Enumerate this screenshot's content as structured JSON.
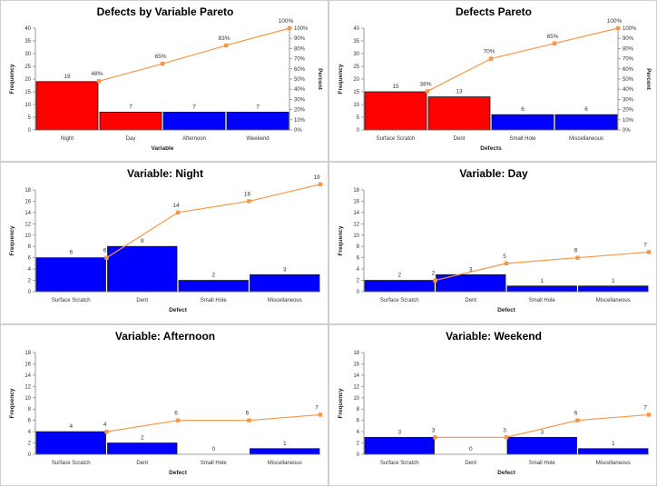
{
  "colors": {
    "bar_red": "#ff0000",
    "bar_blue": "#0000ff",
    "bar_stroke": "#1a1a1a",
    "cum_line": "#f79646",
    "axis": "#808080"
  },
  "chart_data": [
    {
      "type": "bar",
      "title": "Defects by Variable Pareto",
      "categories": [
        "Night",
        "Day",
        "Afternoon",
        "Weekend"
      ],
      "values": [
        19,
        7,
        7,
        7
      ],
      "bar_colors": [
        "red",
        "red",
        "blue",
        "blue"
      ],
      "value_labels": [
        "19",
        "7",
        "7",
        "7"
      ],
      "cumulative": [
        48,
        65,
        83,
        100
      ],
      "cumulative_labels": [
        "48%",
        "65%",
        "83%",
        "100%"
      ],
      "xlabel": "Variable",
      "ylabel": "Frequency",
      "y2label": "Percent",
      "ylim": [
        0,
        40
      ],
      "yticks": [
        0,
        5,
        10,
        15,
        20,
        25,
        30,
        35,
        40
      ],
      "y2ticks": [
        "0%",
        "10%",
        "20%",
        "30%",
        "40%",
        "50%",
        "60%",
        "70%",
        "80%",
        "90%",
        "100%"
      ],
      "cum_scale": "percent"
    },
    {
      "type": "bar",
      "title": "Defects Pareto",
      "categories": [
        "Surface Scratch",
        "Dent",
        "Small Hole",
        "Miscellaneous"
      ],
      "values": [
        15,
        13,
        6,
        6
      ],
      "bar_colors": [
        "red",
        "red",
        "blue",
        "blue"
      ],
      "value_labels": [
        "15",
        "13",
        "6",
        "6"
      ],
      "cumulative": [
        38,
        70,
        85,
        100
      ],
      "cumulative_labels": [
        "38%",
        "70%",
        "85%",
        "100%"
      ],
      "xlabel": "Defects",
      "ylabel": "Frequency",
      "y2label": "Percent",
      "ylim": [
        0,
        40
      ],
      "yticks": [
        0,
        5,
        10,
        15,
        20,
        25,
        30,
        35,
        40
      ],
      "y2ticks": [
        "0%",
        "10%",
        "20%",
        "30%",
        "40%",
        "50%",
        "60%",
        "70%",
        "80%",
        "90%",
        "100%"
      ],
      "cum_scale": "percent"
    },
    {
      "type": "bar",
      "title": "Variable: Night",
      "categories": [
        "Surface Scratch",
        "Dent",
        "Small Hole",
        "Miscellaneous"
      ],
      "values": [
        6,
        8,
        2,
        3
      ],
      "bar_colors": [
        "blue",
        "blue",
        "blue",
        "blue"
      ],
      "value_labels": [
        "6",
        "8",
        "2",
        "3"
      ],
      "cumulative": [
        6,
        14,
        16,
        19
      ],
      "cumulative_labels": [
        "6",
        "14",
        "16",
        "19"
      ],
      "xlabel": "Defect",
      "ylabel": "Frequency",
      "ylim": [
        0,
        18
      ],
      "yticks": [
        0,
        2,
        4,
        6,
        8,
        10,
        12,
        14,
        16,
        18
      ],
      "cum_scale": "count"
    },
    {
      "type": "bar",
      "title": "Variable: Day",
      "categories": [
        "Surface Scratch",
        "Dent",
        "Small Hole",
        "Miscellaneous"
      ],
      "values": [
        2,
        3,
        1,
        1
      ],
      "bar_colors": [
        "blue",
        "blue",
        "blue",
        "blue"
      ],
      "value_labels": [
        "2",
        "3",
        "1",
        "1"
      ],
      "cumulative": [
        2,
        5,
        6,
        7
      ],
      "cumulative_labels": [
        "2",
        "5",
        "6",
        "7"
      ],
      "xlabel": "Defect",
      "ylabel": "Frequency",
      "ylim": [
        0,
        18
      ],
      "yticks": [
        0,
        2,
        4,
        6,
        8,
        10,
        12,
        14,
        16,
        18
      ],
      "cum_scale": "count"
    },
    {
      "type": "bar",
      "title": "Variable: Afternoon",
      "categories": [
        "Surface Scratch",
        "Dent",
        "Small Hole",
        "Miscellaneous"
      ],
      "values": [
        4,
        2,
        0,
        1
      ],
      "bar_colors": [
        "blue",
        "blue",
        "blue",
        "blue"
      ],
      "value_labels": [
        "4",
        "2",
        "0",
        "1"
      ],
      "cumulative": [
        4,
        6,
        6,
        7
      ],
      "cumulative_labels": [
        "4",
        "6",
        "6",
        "7"
      ],
      "xlabel": "Defect",
      "ylabel": "Frequency",
      "ylim": [
        0,
        18
      ],
      "yticks": [
        0,
        2,
        4,
        6,
        8,
        10,
        12,
        14,
        16,
        18
      ],
      "cum_scale": "count"
    },
    {
      "type": "bar",
      "title": "Variable: Weekend",
      "categories": [
        "Surface Scratch",
        "Dent",
        "Small Hole",
        "Miscellaneous"
      ],
      "values": [
        3,
        0,
        3,
        1
      ],
      "bar_colors": [
        "blue",
        "blue",
        "blue",
        "blue"
      ],
      "value_labels": [
        "3",
        "0",
        "3",
        "1"
      ],
      "cumulative": [
        3,
        3,
        6,
        7
      ],
      "cumulative_labels": [
        "3",
        "3",
        "6",
        "7"
      ],
      "xlabel": "Defect",
      "ylabel": "Frequency",
      "ylim": [
        0,
        18
      ],
      "yticks": [
        0,
        2,
        4,
        6,
        8,
        10,
        12,
        14,
        16,
        18
      ],
      "cum_scale": "count"
    }
  ]
}
